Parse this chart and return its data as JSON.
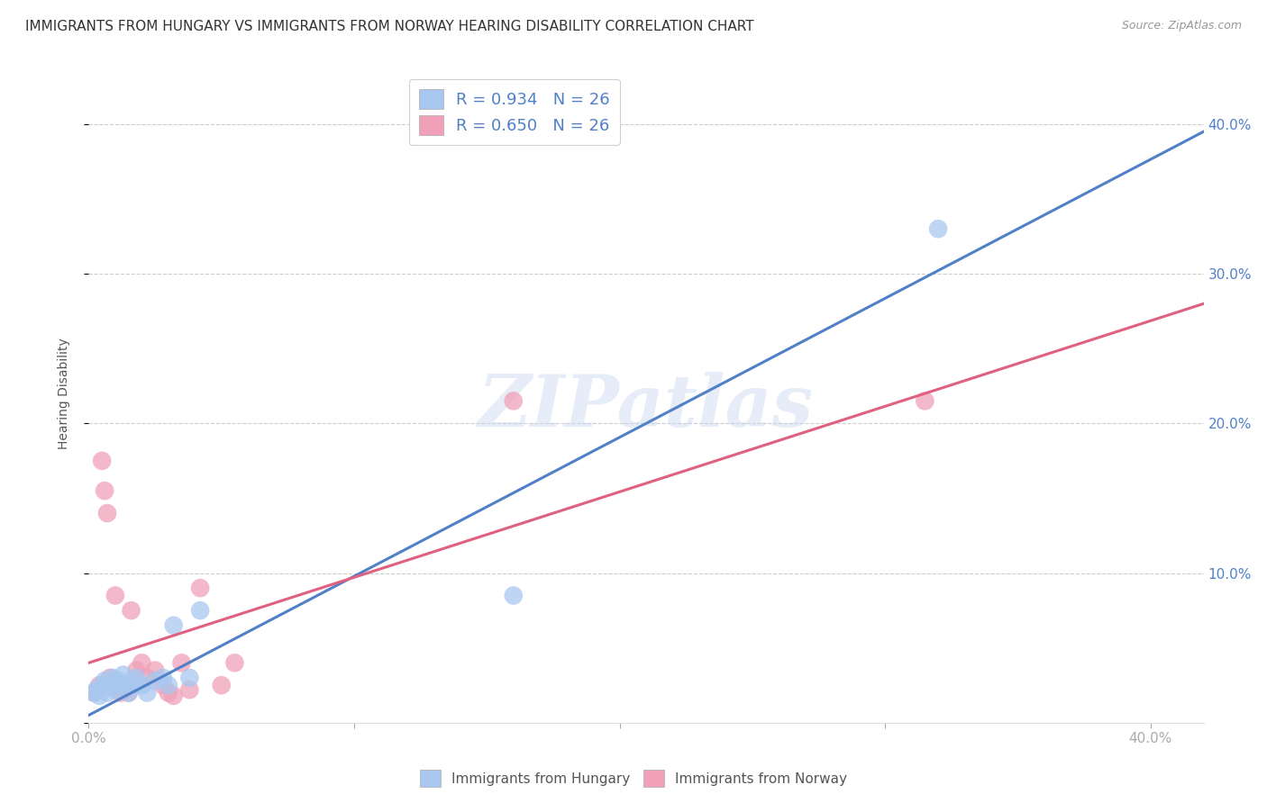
{
  "title": "IMMIGRANTS FROM HUNGARY VS IMMIGRANTS FROM NORWAY HEARING DISABILITY CORRELATION CHART",
  "source": "Source: ZipAtlas.com",
  "ylabel": "Hearing Disability",
  "xlim": [
    0.0,
    0.42
  ],
  "ylim": [
    0.0,
    0.44
  ],
  "x_ticks": [
    0.0,
    0.1,
    0.2,
    0.3,
    0.4
  ],
  "y_ticks": [
    0.0,
    0.1,
    0.2,
    0.3,
    0.4
  ],
  "x_tick_labels_show": [
    "0.0%",
    "",
    "",
    "",
    "40.0%"
  ],
  "y_tick_labels_right": [
    "",
    "10.0%",
    "20.0%",
    "30.0%",
    "40.0%"
  ],
  "blue_R": "0.934",
  "blue_N": "26",
  "pink_R": "0.650",
  "pink_N": "26",
  "blue_color": "#A8C8F0",
  "pink_color": "#F0A0B8",
  "blue_line_color": "#5080C8",
  "pink_line_color": "#E06080",
  "watermark": "ZIPatlas",
  "blue_scatter_x": [
    0.002,
    0.003,
    0.004,
    0.005,
    0.006,
    0.007,
    0.008,
    0.009,
    0.01,
    0.011,
    0.012,
    0.013,
    0.015,
    0.016,
    0.017,
    0.018,
    0.02,
    0.022,
    0.025,
    0.028,
    0.03,
    0.032,
    0.038,
    0.042,
    0.16,
    0.32
  ],
  "blue_scatter_y": [
    0.02,
    0.022,
    0.018,
    0.025,
    0.028,
    0.02,
    0.025,
    0.03,
    0.022,
    0.028,
    0.025,
    0.032,
    0.02,
    0.028,
    0.025,
    0.03,
    0.025,
    0.02,
    0.028,
    0.03,
    0.025,
    0.065,
    0.03,
    0.075,
    0.085,
    0.33
  ],
  "pink_scatter_x": [
    0.002,
    0.004,
    0.005,
    0.006,
    0.007,
    0.008,
    0.009,
    0.01,
    0.012,
    0.013,
    0.015,
    0.016,
    0.018,
    0.02,
    0.022,
    0.025,
    0.028,
    0.03,
    0.032,
    0.035,
    0.038,
    0.042,
    0.05,
    0.055,
    0.16,
    0.315
  ],
  "pink_scatter_y": [
    0.02,
    0.025,
    0.175,
    0.155,
    0.14,
    0.03,
    0.025,
    0.085,
    0.02,
    0.025,
    0.02,
    0.075,
    0.035,
    0.04,
    0.03,
    0.035,
    0.025,
    0.02,
    0.018,
    0.04,
    0.022,
    0.09,
    0.025,
    0.04,
    0.215,
    0.215
  ],
  "blue_line_x": [
    0.0,
    0.42
  ],
  "blue_line_y": [
    0.005,
    0.395
  ],
  "pink_line_x": [
    0.0,
    0.42
  ],
  "pink_line_y": [
    0.04,
    0.28
  ],
  "background_color": "#FFFFFF",
  "grid_color": "#CCCCCC",
  "title_fontsize": 11,
  "tick_fontsize": 11,
  "legend_fontsize": 13
}
